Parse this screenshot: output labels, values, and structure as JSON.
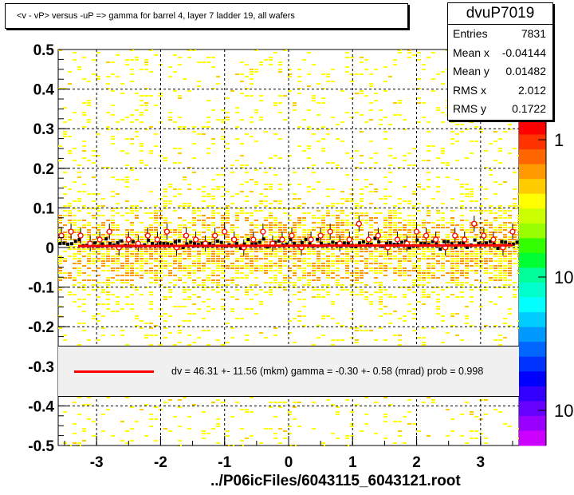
{
  "title": "<v - vP>       versus  -uP =>  gamma for barrel 4, layer 7 ladder 19, all wafers",
  "stats": {
    "name": "dvuP7019",
    "rows": [
      {
        "label": "Entries",
        "value": "7831"
      },
      {
        "label": "Mean x",
        "value": "-0.04144"
      },
      {
        "label": "Mean y",
        "value": "0.01482"
      },
      {
        "label": "RMS x",
        "value": "2.012"
      },
      {
        "label": "RMS y",
        "value": "0.1722"
      }
    ]
  },
  "fit_text": "dv =   46.31 +- 11.56 (mkm) gamma =   -0.30 +-  0.58 (mrad) prob = 0.998",
  "footer": "../P06icFiles/6043115_6043121.root",
  "colors": {
    "fit_line": "#ff0000",
    "profile_marker": "#ff0000",
    "box_fill": "#f0f0f0"
  },
  "chart_data": {
    "type": "heatmap",
    "xlim": [
      -3.6,
      3.6
    ],
    "ylim": [
      -0.5,
      0.5
    ],
    "x_ticks": [
      -3,
      -2,
      -1,
      0,
      1,
      2,
      3
    ],
    "x_tick_labels": [
      "-3",
      "-2",
      "-1",
      "0",
      "1",
      "2",
      "3"
    ],
    "y_ticks": [
      -0.5,
      -0.4,
      -0.3,
      -0.2,
      -0.1,
      0,
      0.1,
      0.2,
      0.3,
      0.4,
      0.5
    ],
    "y_tick_labels": [
      "-0.5",
      "-0.4",
      "-0.3",
      "-0.2",
      "-0.1",
      "0",
      "0.1",
      "0.2",
      "0.3",
      "0.4",
      "0.5"
    ],
    "z_scale": "log",
    "z_tick_labels": [
      "1",
      "10",
      "10"
    ],
    "grid": true,
    "fit_line": {
      "slope": 0.0003,
      "intercept": 0.0046
    },
    "profile_x": [
      -3.55,
      -3.4,
      -3.25,
      -3.1,
      -2.95,
      -2.8,
      -2.65,
      -2.5,
      -2.35,
      -2.2,
      -2.05,
      -1.9,
      -1.75,
      -1.6,
      -1.45,
      -1.3,
      -1.15,
      -1.0,
      -0.85,
      -0.7,
      -0.55,
      -0.4,
      -0.25,
      -0.1,
      0.05,
      0.2,
      0.35,
      0.5,
      0.65,
      0.8,
      0.95,
      1.1,
      1.25,
      1.4,
      1.55,
      1.7,
      1.85,
      2.0,
      2.15,
      2.3,
      2.45,
      2.6,
      2.75,
      2.9,
      3.05,
      3.2,
      3.35,
      3.5
    ],
    "profile_y": [
      0.03,
      0.04,
      0.03,
      0.01,
      0.02,
      0.04,
      0.0,
      0.02,
      0.01,
      0.03,
      0.02,
      0.04,
      0.0,
      0.03,
      0.02,
      0.01,
      0.03,
      0.04,
      0.02,
      0.0,
      0.02,
      0.04,
      0.01,
      0.02,
      0.03,
      0.0,
      0.02,
      0.03,
      0.04,
      0.01,
      0.02,
      0.06,
      0.02,
      0.03,
      0.0,
      0.02,
      0.01,
      0.04,
      0.03,
      0.02,
      0.0,
      0.03,
      0.02,
      0.06,
      0.03,
      0.02,
      0.0,
      0.04
    ]
  }
}
